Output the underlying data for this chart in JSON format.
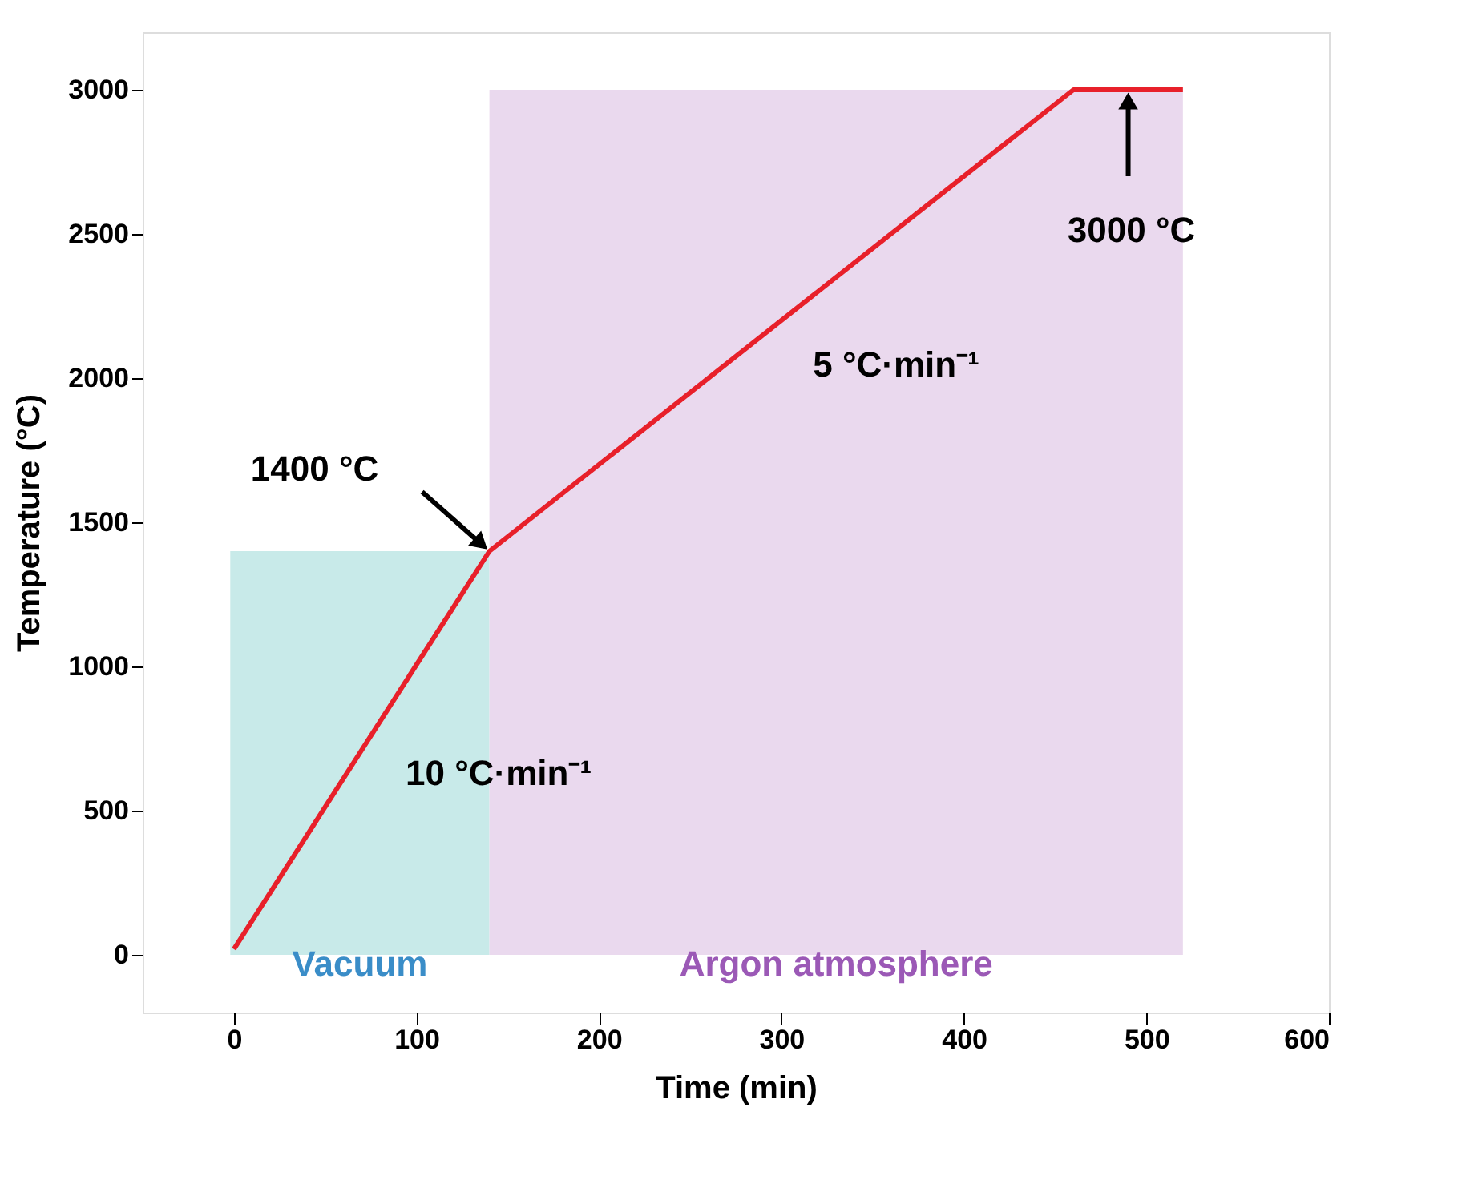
{
  "chart_data": {
    "type": "line",
    "xlabel": "Time (min)",
    "ylabel": "Temperature (°C)",
    "xlim": [
      -50,
      600
    ],
    "xticks": [
      0,
      100,
      200,
      300,
      400,
      500,
      600
    ],
    "ylim": [
      -200,
      3200
    ],
    "yticks": [
      0,
      500,
      1000,
      1500,
      2000,
      2500,
      3000
    ],
    "marker": "none",
    "line_style": "solid",
    "series": [
      {
        "type": "area",
        "name": "Vacuum",
        "x": [
          -2,
          140
        ],
        "values": [
          1400,
          1400
        ],
        "color": "#c8eae9"
      },
      {
        "type": "area",
        "name": "Argon atmosphere",
        "x": [
          140,
          520
        ],
        "values": [
          3000,
          3000
        ],
        "color": "#ead9ee"
      },
      {
        "x": [
          0,
          140,
          460,
          520
        ],
        "values": [
          20,
          1400,
          3000,
          3000
        ],
        "color": "#e8202a"
      }
    ],
    "annotations": [
      {
        "text": "1400 °C",
        "x": 140,
        "y": 1400
      },
      {
        "text": "3000 °C",
        "x": 490,
        "y": 3000
      },
      "5 °C·min⁻¹",
      "10 °C·min⁻¹"
    ]
  }
}
